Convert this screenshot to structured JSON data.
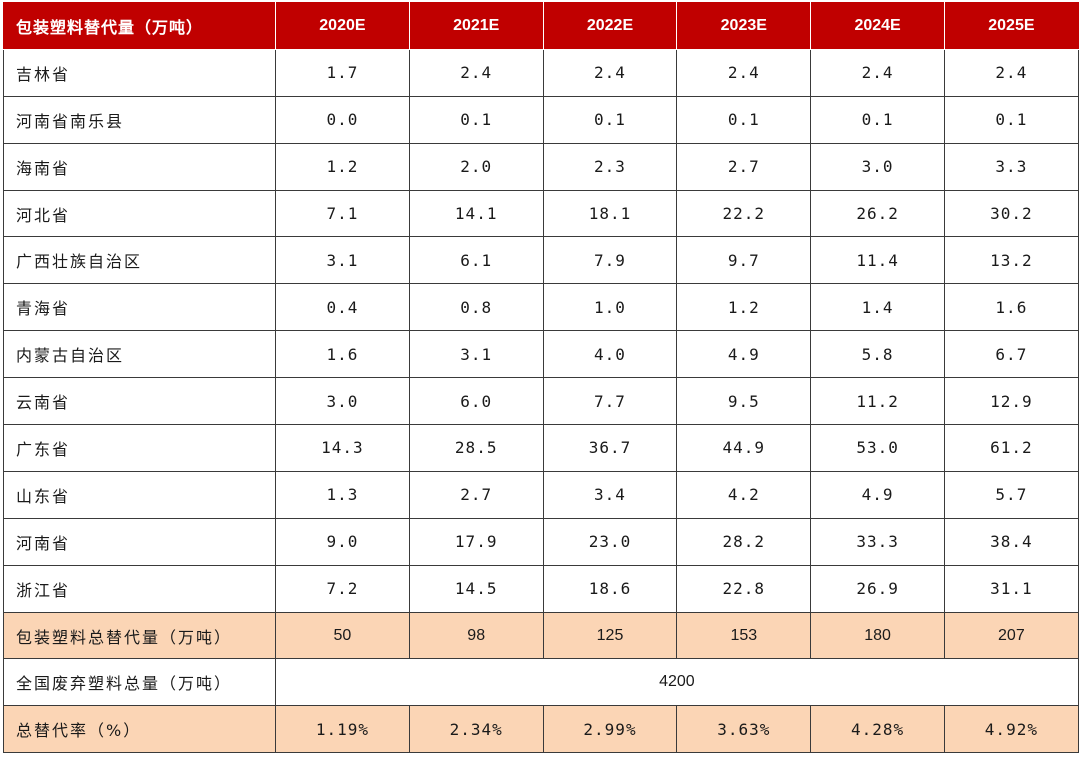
{
  "header": {
    "first": "包装塑料替代量（万吨）",
    "years": [
      "2020E",
      "2021E",
      "2022E",
      "2023E",
      "2024E",
      "2025E"
    ]
  },
  "rows": [
    {
      "label": "吉林省",
      "values": [
        "1.7",
        "2.4",
        "2.4",
        "2.4",
        "2.4",
        "2.4"
      ]
    },
    {
      "label": "河南省南乐县",
      "values": [
        "0.0",
        "0.1",
        "0.1",
        "0.1",
        "0.1",
        "0.1"
      ]
    },
    {
      "label": "海南省",
      "values": [
        "1.2",
        "2.0",
        "2.3",
        "2.7",
        "3.0",
        "3.3"
      ]
    },
    {
      "label": "河北省",
      "values": [
        "7.1",
        "14.1",
        "18.1",
        "22.2",
        "26.2",
        "30.2"
      ]
    },
    {
      "label": "广西壮族自治区",
      "values": [
        "3.1",
        "6.1",
        "7.9",
        "9.7",
        "11.4",
        "13.2"
      ]
    },
    {
      "label": "青海省",
      "values": [
        "0.4",
        "0.8",
        "1.0",
        "1.2",
        "1.4",
        "1.6"
      ]
    },
    {
      "label": "内蒙古自治区",
      "values": [
        "1.6",
        "3.1",
        "4.0",
        "4.9",
        "5.8",
        "6.7"
      ]
    },
    {
      "label": "云南省",
      "values": [
        "3.0",
        "6.0",
        "7.7",
        "9.5",
        "11.2",
        "12.9"
      ]
    },
    {
      "label": "广东省",
      "values": [
        "14.3",
        "28.5",
        "36.7",
        "44.9",
        "53.0",
        "61.2"
      ]
    },
    {
      "label": "山东省",
      "values": [
        "1.3",
        "2.7",
        "3.4",
        "4.2",
        "4.9",
        "5.7"
      ]
    },
    {
      "label": "河南省",
      "values": [
        "9.0",
        "17.9",
        "23.0",
        "28.2",
        "33.3",
        "38.4"
      ]
    },
    {
      "label": "浙江省",
      "values": [
        "7.2",
        "14.5",
        "18.6",
        "22.8",
        "26.9",
        "31.1"
      ]
    }
  ],
  "total": {
    "label": "包装塑料总替代量（万吨）",
    "values": [
      "50",
      "98",
      "125",
      "153",
      "180",
      "207"
    ]
  },
  "national": {
    "label": "全国废弃塑料总量（万吨）",
    "value": "4200"
  },
  "rate": {
    "label": "总替代率（%）",
    "values": [
      "1.19%",
      "2.34%",
      "2.99%",
      "3.63%",
      "4.28%",
      "4.92%"
    ]
  },
  "colors": {
    "header_bg": "#c00000",
    "highlight_bg": "#fbd5b5"
  }
}
